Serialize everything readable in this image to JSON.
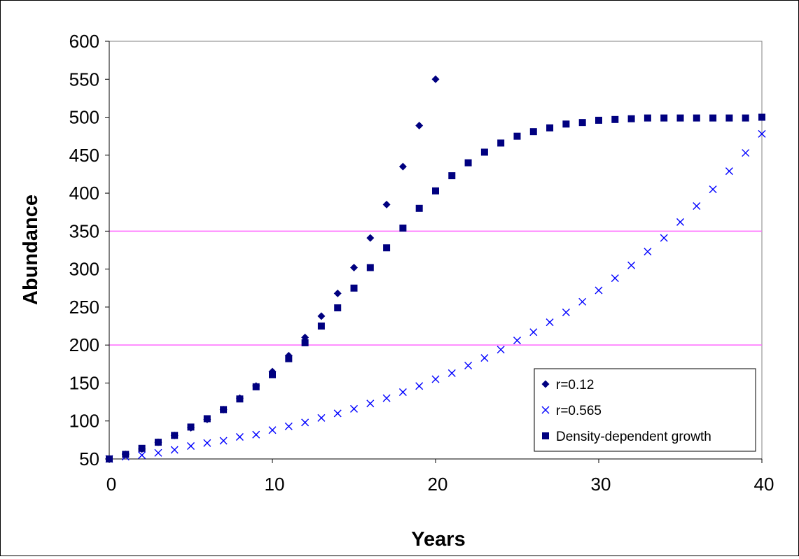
{
  "chart_data": {
    "type": "scatter",
    "title": "",
    "xlabel": "Years",
    "ylabel": "Abundance",
    "xlim": [
      0,
      40
    ],
    "ylim": [
      50,
      600
    ],
    "xticks": [
      0,
      10,
      20,
      30,
      40
    ],
    "yticks": [
      50,
      100,
      150,
      200,
      250,
      300,
      350,
      400,
      450,
      500,
      550,
      600
    ],
    "grid": false,
    "reference_lines": [
      {
        "y": 200,
        "color": "#ff66ff"
      },
      {
        "y": 350,
        "color": "#ff66ff"
      }
    ],
    "legend_position": "bottom-right",
    "series": [
      {
        "name": "r=0.12",
        "marker": "diamond",
        "color": "#000080",
        "x": [
          0,
          1,
          2,
          3,
          4,
          5,
          6,
          7,
          8,
          9,
          10,
          11,
          12,
          13,
          14,
          15,
          16,
          17,
          18,
          19,
          20
        ],
        "y": [
          50,
          56,
          63,
          72,
          81,
          91,
          102,
          115,
          130,
          146,
          165,
          186,
          210,
          238,
          268,
          302,
          341,
          385,
          435,
          489,
          550
        ]
      },
      {
        "name": "r=0.565",
        "marker": "x",
        "color": "#0000ff",
        "x": [
          0,
          1,
          2,
          3,
          4,
          5,
          6,
          7,
          8,
          9,
          10,
          11,
          12,
          13,
          14,
          15,
          16,
          17,
          18,
          19,
          20,
          21,
          22,
          23,
          24,
          25,
          26,
          27,
          28,
          29,
          30,
          31,
          32,
          33,
          34,
          35,
          36,
          37,
          38,
          39,
          40
        ],
        "y": [
          50,
          53,
          55,
          58,
          62,
          67,
          71,
          74,
          79,
          82,
          88,
          93,
          98,
          104,
          110,
          116,
          123,
          130,
          138,
          146,
          155,
          163,
          173,
          183,
          194,
          206,
          217,
          230,
          243,
          257,
          272,
          288,
          305,
          323,
          341,
          362,
          383,
          405,
          429,
          453,
          478
        ]
      },
      {
        "name": "Density-dependent growth",
        "marker": "square",
        "color": "#000080",
        "x": [
          0,
          1,
          2,
          3,
          4,
          5,
          6,
          7,
          8,
          9,
          10,
          11,
          12,
          13,
          14,
          15,
          16,
          17,
          18,
          19,
          20,
          21,
          22,
          23,
          24,
          25,
          26,
          27,
          28,
          29,
          30,
          31,
          32,
          33,
          34,
          35,
          36,
          37,
          38,
          39,
          40
        ],
        "y": [
          50,
          56,
          64,
          72,
          81,
          92,
          103,
          115,
          129,
          145,
          161,
          182,
          203,
          225,
          249,
          275,
          302,
          328,
          354,
          380,
          403,
          423,
          440,
          454,
          466,
          475,
          481,
          486,
          491,
          493,
          496,
          497,
          498,
          499,
          499,
          499,
          499,
          499,
          499,
          499,
          500
        ]
      }
    ]
  }
}
